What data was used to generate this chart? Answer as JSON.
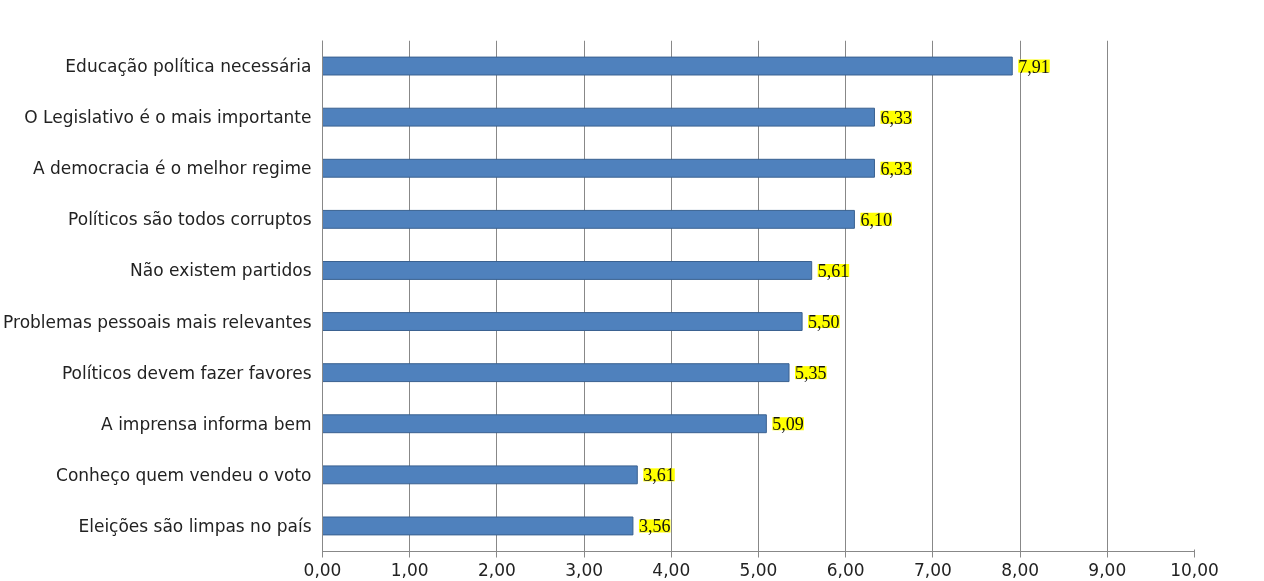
{
  "chart_data": {
    "type": "bar",
    "orientation": "horizontal",
    "categories": [
      "Educação política necessária",
      "O Legislativo é o mais importante",
      "A democracia é o melhor regime",
      "Políticos são todos corruptos",
      "Não existem partidos",
      "Problemas pessoais mais relevantes",
      "Políticos devem fazer favores",
      "A imprensa informa bem",
      "Conheço quem vendeu o voto",
      "Eleições são limpas no país"
    ],
    "values": [
      7.91,
      6.33,
      6.33,
      6.1,
      5.61,
      5.5,
      5.35,
      5.09,
      3.61,
      3.56
    ],
    "value_labels": [
      "7,91",
      "6,33",
      "6,33",
      "6,10",
      "5,61",
      "5,50",
      "5,35",
      "5,09",
      "3,61",
      "3,56"
    ],
    "color": "#4f81bd",
    "xlim": [
      0,
      10
    ],
    "xticks": [
      {
        "value": 0,
        "label": "0,00"
      },
      {
        "value": 1,
        "label": "1,00"
      },
      {
        "value": 2,
        "label": "2,00"
      },
      {
        "value": 3,
        "label": "3,00"
      },
      {
        "value": 4,
        "label": "4,00"
      },
      {
        "value": 5,
        "label": "5,00"
      },
      {
        "value": 6,
        "label": "6,00"
      },
      {
        "value": 7,
        "label": "7,00"
      },
      {
        "value": 8,
        "label": "8,00"
      },
      {
        "value": 9,
        "label": "9,00"
      },
      {
        "value": 10,
        "label": "10,00"
      }
    ],
    "grid": "x"
  }
}
